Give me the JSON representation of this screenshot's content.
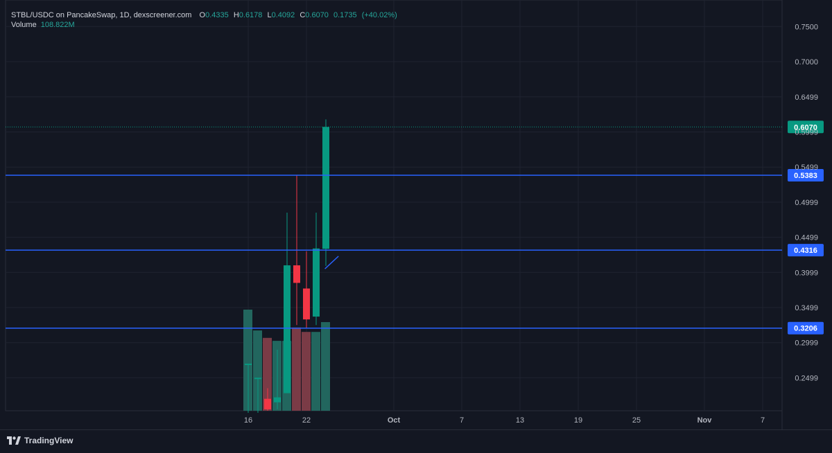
{
  "header": {
    "symbol": "STBL/USDC on PancakeSwap, 1D, dexscreener.com",
    "open_label": "O",
    "open": "0.4335",
    "high_label": "H",
    "high": "0.6178",
    "low_label": "L",
    "low": "0.4092",
    "close_label": "C",
    "close": "0.6070",
    "change": "0.1735",
    "change_pct": "(+40.02%)",
    "volume_label": "Volume",
    "volume": "108.822M"
  },
  "footer": {
    "brand": "TradingView"
  },
  "colors": {
    "background": "#131722",
    "grid": "#1f2330",
    "up": "#089981",
    "down": "#f23645",
    "up_volume": "#22665e",
    "down_volume": "#7a3b46",
    "level_line": "#2962ff",
    "text": "#d1d4dc"
  },
  "chart_data": {
    "type": "candlestick",
    "title": "STBL/USDC on PancakeSwap, 1D, dexscreener.com",
    "ylim": [
      0.2,
      0.78
    ],
    "y_ticks": [
      "0.2499",
      "0.2999",
      "0.3499",
      "0.3999",
      "0.4499",
      "0.4999",
      "0.5499",
      "0.5999",
      "0.6499",
      "0.7000",
      "0.7500"
    ],
    "x_ticks": [
      {
        "label": "16",
        "day": 16
      },
      {
        "label": "22",
        "day": 22
      },
      {
        "label": "Oct",
        "day": 31
      },
      {
        "label": "7",
        "day": 38
      },
      {
        "label": "13",
        "day": 44
      },
      {
        "label": "19",
        "day": 50
      },
      {
        "label": "25",
        "day": 56
      },
      {
        "label": "Nov",
        "day": 63
      },
      {
        "label": "7",
        "day": 69
      }
    ],
    "candles": [
      {
        "day": 16,
        "open": 0.27,
        "high": 0.27,
        "low": 0.2,
        "close": 0.27,
        "volume": 0.34
      },
      {
        "day": 17,
        "open": 0.25,
        "high": 0.25,
        "low": 0.2,
        "close": 0.25,
        "volume": 0.27
      },
      {
        "day": 18,
        "open": 0.22,
        "high": 0.235,
        "low": 0.203,
        "close": 0.205,
        "volume": 0.245
      },
      {
        "day": 19,
        "open": 0.215,
        "high": 0.29,
        "low": 0.205,
        "close": 0.222,
        "volume": 0.235
      },
      {
        "day": 20,
        "open": 0.228,
        "high": 0.485,
        "low": 0.228,
        "close": 0.41,
        "volume": 0.235
      },
      {
        "day": 21,
        "open": 0.41,
        "high": 0.538,
        "low": 0.325,
        "close": 0.385,
        "volume": 0.28
      },
      {
        "day": 22,
        "open": 0.377,
        "high": 0.43,
        "low": 0.32,
        "close": 0.333,
        "volume": 0.265
      },
      {
        "day": 23,
        "open": 0.337,
        "high": 0.485,
        "low": 0.325,
        "close": 0.434,
        "volume": 0.265
      },
      {
        "day": 24,
        "open": 0.4335,
        "high": 0.6178,
        "low": 0.4092,
        "close": 0.607,
        "volume": 0.298
      }
    ],
    "levels": [
      "0.5383",
      "0.4316",
      "0.3206"
    ],
    "last_price": "0.6070",
    "trendline": {
      "from": {
        "day": 23.9,
        "price": 0.405
      },
      "to": {
        "day": 25.3,
        "price": 0.423
      }
    }
  }
}
